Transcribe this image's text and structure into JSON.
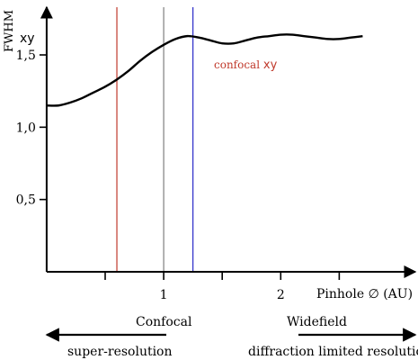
{
  "chart_data": {
    "type": "line",
    "ylabel": "FWHM",
    "ylabel_sub": "xy",
    "xlabel": "Pinhole ∅ (AU)",
    "xlim": [
      -0.03,
      3.15
    ],
    "ylim": [
      0,
      1.83
    ],
    "x_ticks": [
      0.5,
      1,
      1.5,
      2,
      2.5
    ],
    "x_tick_labels": [
      {
        "value": 1,
        "label": "1"
      },
      {
        "value": 2,
        "label": "2"
      }
    ],
    "y_ticks": [
      {
        "value": 0.5,
        "label": "0,5"
      },
      {
        "value": 1.0,
        "label": "1,0"
      },
      {
        "value": 1.5,
        "label": "1,5"
      }
    ],
    "series": [
      {
        "label": "confocal",
        "label_sub": "xy",
        "color": "#000000",
        "x": [
          0,
          0.1,
          0.2,
          0.3,
          0.4,
          0.5,
          0.6,
          0.7,
          0.8,
          0.9,
          1.0,
          1.1,
          1.2,
          1.3,
          1.4,
          1.5,
          1.6,
          1.7,
          1.8,
          1.9,
          2.0,
          2.1,
          2.2,
          2.3,
          2.4,
          2.5,
          2.6,
          2.7
        ],
        "y": [
          1.15,
          1.15,
          1.17,
          1.2,
          1.24,
          1.28,
          1.33,
          1.39,
          1.46,
          1.52,
          1.57,
          1.61,
          1.63,
          1.62,
          1.6,
          1.58,
          1.58,
          1.6,
          1.62,
          1.63,
          1.64,
          1.64,
          1.63,
          1.62,
          1.61,
          1.61,
          1.62,
          1.63
        ]
      }
    ],
    "vlines": [
      {
        "x": 0.6,
        "color": "#c0392b"
      },
      {
        "x": 1.0,
        "color": "#7f7f7f"
      },
      {
        "x": 1.25,
        "color": "#2a2ac8"
      }
    ],
    "annotations": {
      "confocal_label": "Confocal",
      "widefield_label": "Widefield",
      "left_arrow_label": "super-resolution",
      "right_arrow_label": "diffraction limited resolution"
    },
    "colors": {
      "curve_label": "#c0392b",
      "axes": "#000000"
    }
  }
}
